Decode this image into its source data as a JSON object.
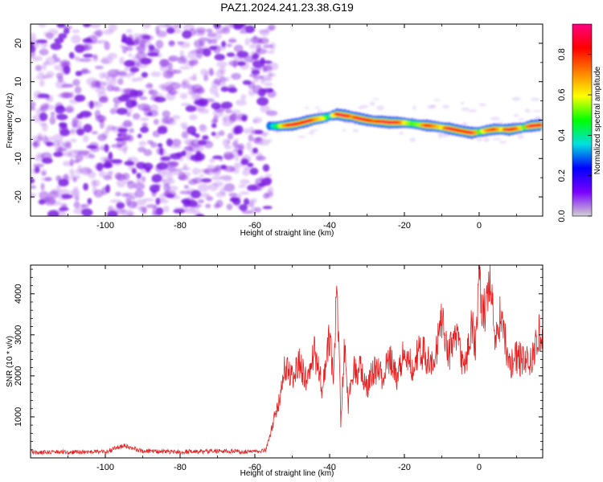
{
  "chart_data": [
    {
      "type": "heatmap",
      "title": "PAZ1.2024.241.23.38.G19",
      "xlabel": "Height of straight line (km)",
      "ylabel": "Frequency (Hz)",
      "xlim": [
        -120,
        17
      ],
      "ylim": [
        -25,
        25
      ],
      "x_ticks": [
        -100,
        -80,
        -60,
        -40,
        -20,
        0
      ],
      "y_ticks": [
        -20,
        -10,
        0,
        10,
        20
      ],
      "noise_region_x": [
        -120,
        -56
      ],
      "signal_ridge": {
        "x": [
          -56,
          -54,
          -52,
          -50,
          -48,
          -46,
          -44,
          -42,
          -40,
          -38,
          -36,
          -34,
          -32,
          -30,
          -28,
          -26,
          -24,
          -22,
          -20,
          -18,
          -16,
          -14,
          -12,
          -10,
          -8,
          -6,
          -4,
          -2,
          0,
          2,
          4,
          6,
          8,
          10,
          12,
          14,
          16
        ],
        "frequency": [
          -1.5,
          -1.6,
          -1.4,
          -1.2,
          -0.8,
          -0.3,
          0.2,
          0.5,
          1.0,
          1.5,
          1.2,
          0.9,
          0.4,
          0.0,
          -0.3,
          -0.4,
          -0.6,
          -0.6,
          -0.7,
          -0.9,
          -1.2,
          -1.4,
          -1.6,
          -1.9,
          -2.2,
          -2.6,
          -3.0,
          -3.3,
          -3.1,
          -2.7,
          -2.4,
          -2.4,
          -2.5,
          -2.2,
          -1.9,
          -1.5,
          -1.3
        ],
        "amplitude": [
          0.3,
          0.45,
          0.7,
          0.95,
          0.8,
          0.9,
          0.7,
          0.6,
          0.35,
          0.85,
          0.95,
          0.7,
          0.9,
          0.85,
          0.75,
          0.9,
          0.95,
          0.85,
          0.6,
          0.5,
          0.55,
          0.85,
          0.7,
          0.6,
          0.9,
          0.85,
          0.8,
          0.9,
          0.5,
          0.7,
          0.8,
          0.6,
          0.9,
          0.75,
          0.5,
          0.95,
          0.85
        ]
      },
      "colorbar": {
        "label": "Normalized spectral amplitude",
        "range": [
          0,
          0.95
        ],
        "ticks": [
          "0.0",
          "0.2",
          "0.4",
          "0.6",
          "0.8"
        ],
        "stops": [
          "#d2d2d2",
          "#7a00ff",
          "#0000ff",
          "#00e0e0",
          "#00ff00",
          "#ffff00",
          "#ff8000",
          "#ff0000",
          "#ff0080"
        ]
      },
      "noise_color": "#8a2be2"
    },
    {
      "type": "line",
      "xlabel": "Height of straight line (km)",
      "ylabel": "SNR (10 * v/v)",
      "xlim": [
        -120,
        17
      ],
      "ylim": [
        0,
        4700
      ],
      "x_ticks": [
        -100,
        -80,
        -60,
        -40,
        -20,
        0
      ],
      "y_ticks": [
        1000,
        2000,
        3000,
        4000
      ],
      "line_color": "#e62020",
      "series": [
        {
          "x": [
            -120,
            -110,
            -100,
            -95,
            -90,
            -80,
            -70,
            -60,
            -57,
            -55,
            -53,
            -52,
            -50,
            -48,
            -46,
            -44,
            -42,
            -40,
            -39,
            -38,
            -37,
            -36,
            -35,
            -34,
            -32,
            -30,
            -28,
            -26,
            -24,
            -22,
            -20,
            -18,
            -16,
            -14,
            -12,
            -10,
            -8,
            -6,
            -4,
            -2,
            -1,
            0,
            1,
            2,
            3,
            4,
            6,
            8,
            10,
            12,
            14,
            16,
            17
          ],
          "y": [
            150,
            140,
            150,
            300,
            160,
            150,
            160,
            150,
            200,
            900,
            1600,
            2200,
            1900,
            2300,
            1800,
            2600,
            1700,
            2900,
            2000,
            4300,
            900,
            2700,
            1300,
            2100,
            2200,
            1700,
            2200,
            2000,
            2500,
            1900,
            2600,
            2200,
            2700,
            2400,
            2300,
            3300,
            2500,
            3100,
            2100,
            3300,
            2700,
            4600,
            3500,
            3900,
            4600,
            2900,
            3500,
            2200,
            2500,
            2300,
            2400,
            3000,
            2700
          ]
        }
      ]
    }
  ]
}
